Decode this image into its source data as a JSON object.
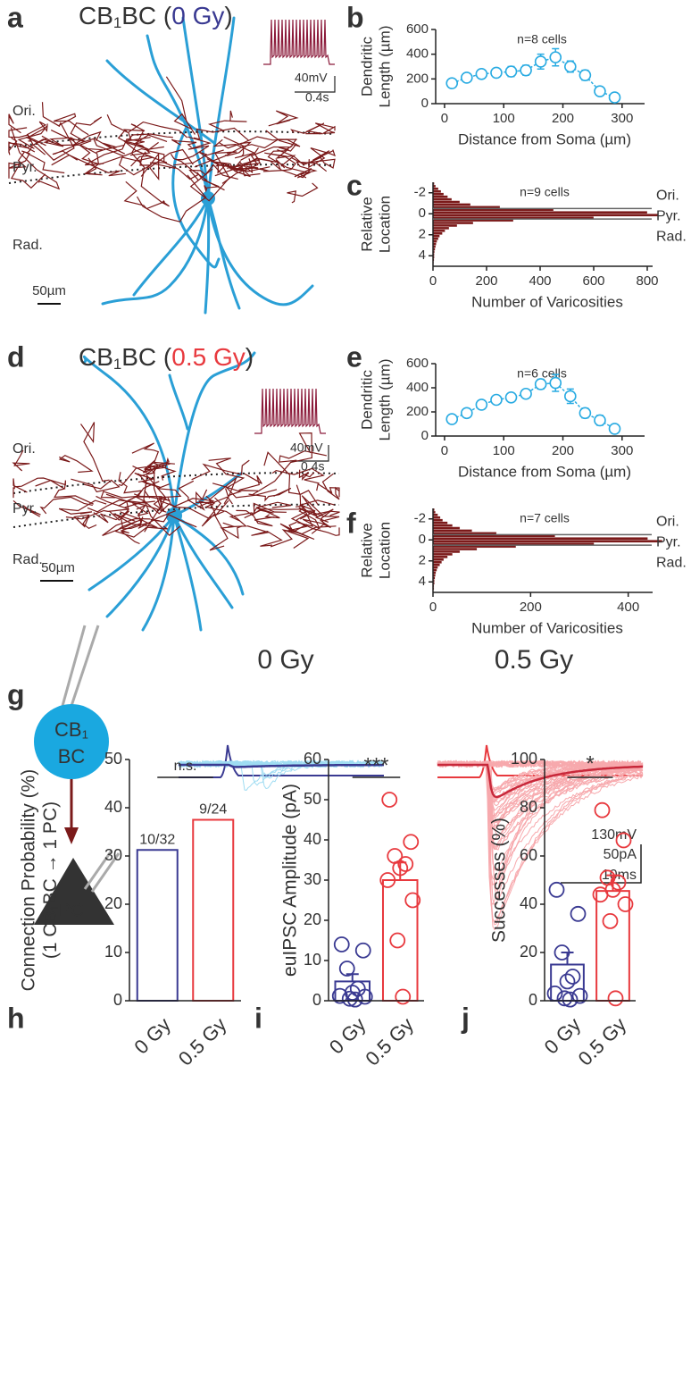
{
  "panel_labels": [
    "a",
    "b",
    "c",
    "d",
    "e",
    "f",
    "g",
    "h",
    "i",
    "j"
  ],
  "morphology": [
    {
      "title_parts": [
        "CB",
        "1",
        "BC (",
        "0 Gy",
        ")"
      ],
      "condition_color": "#3a3a92",
      "layers": [
        "Ori.",
        "Pyr.",
        "Rad."
      ],
      "scale_bar": "50µm",
      "inset_scale": [
        "40mV",
        "0.4s"
      ]
    },
    {
      "title_parts": [
        "CB",
        "1",
        "BC (",
        "0.5 Gy",
        ")"
      ],
      "condition_color": "#e8393e",
      "layers": [
        "Ori.",
        "Pyr.",
        "Rad."
      ],
      "scale_bar": "50µm",
      "inset_scale": [
        "40mV",
        "0.4s"
      ]
    }
  ],
  "connection": {
    "presynaptic": [
      "CB",
      "1",
      "BC"
    ],
    "postsynaptic": "PC",
    "conditions": [
      {
        "name": "0 Gy",
        "color": "#3a3a92"
      },
      {
        "name": "0.5 Gy",
        "color": "#e8393e"
      }
    ],
    "scale": [
      "130mV",
      "50pA",
      "10ms"
    ]
  },
  "chart_data": [
    {
      "type": "line",
      "title": "n=8 cells",
      "x": [
        12.5,
        37.5,
        62.5,
        87.5,
        112.5,
        137.5,
        162.5,
        187.5,
        212.5,
        237.5,
        262.5,
        287.5
      ],
      "series": [
        {
          "color": "#29abe2",
          "values": [
            165,
            210,
            240,
            250,
            260,
            270,
            340,
            375,
            300,
            230,
            100,
            50
          ],
          "errors": [
            25,
            20,
            20,
            25,
            40,
            40,
            60,
            70,
            45,
            40,
            20,
            15
          ]
        }
      ],
      "xlim": [
        -15,
        338
      ],
      "xticks": [
        0,
        100,
        200,
        300
      ],
      "ylim": [
        0,
        600
      ],
      "yticks": [
        0,
        200,
        400,
        600
      ],
      "xlabel": "Distance from Soma (µm)",
      "ylabel": [
        "Dendritic",
        "Length (µm)"
      ]
    },
    {
      "type": "histogram",
      "orientation": "horizontal",
      "title": "n=9 cells",
      "color": "#7b1a1a",
      "bins": [
        -3,
        -2.75,
        -2.5,
        -2.25,
        -2,
        -1.75,
        -1.5,
        -1.25,
        -1,
        -0.75,
        -0.5,
        -0.25,
        0,
        0.25,
        0.5,
        0.75,
        1,
        1.25,
        1.5,
        1.75,
        2,
        2.25,
        2.5,
        2.75,
        3,
        3.25,
        3.5,
        3.75,
        4,
        4.25,
        4.5,
        4.75,
        5
      ],
      "values": [
        5,
        10,
        20,
        30,
        40,
        55,
        70,
        100,
        140,
        250,
        450,
        800,
        840,
        600,
        300,
        150,
        90,
        60,
        45,
        35,
        25,
        20,
        15,
        12,
        10,
        8,
        6,
        5,
        5,
        4,
        3,
        2
      ],
      "xlim": [
        0,
        820
      ],
      "xticks": [
        0,
        200,
        400,
        600,
        800
      ],
      "ylim": [
        -3,
        5
      ],
      "y_inverted": true,
      "yticks": [
        -2,
        0,
        2,
        4
      ],
      "boundaries": [
        -0.5,
        0.5
      ],
      "regions": [
        "Ori.",
        "Pyr.",
        "Rad."
      ],
      "xlabel": "Number of Varicosities",
      "ylabel": [
        "Relative",
        "Location"
      ]
    },
    {
      "type": "line",
      "title": "n=6 cells",
      "x": [
        12.5,
        37.5,
        62.5,
        87.5,
        112.5,
        137.5,
        162.5,
        187.5,
        212.5,
        237.5,
        262.5,
        287.5
      ],
      "series": [
        {
          "color": "#29abe2",
          "values": [
            140,
            190,
            260,
            300,
            320,
            350,
            430,
            440,
            330,
            190,
            130,
            60
          ],
          "errors": [
            20,
            20,
            20,
            20,
            20,
            25,
            40,
            70,
            60,
            40,
            40,
            20
          ]
        }
      ],
      "xlim": [
        -15,
        338
      ],
      "xticks": [
        0,
        100,
        200,
        300
      ],
      "ylim": [
        0,
        600
      ],
      "yticks": [
        0,
        200,
        400,
        600
      ],
      "xlabel": "Distance from Soma (µm)",
      "ylabel": [
        "Dendritic",
        "Length (µm)"
      ]
    },
    {
      "type": "histogram",
      "orientation": "horizontal",
      "title": "n=7 cells",
      "color": "#7b1a1a",
      "bins": [
        -3,
        -2.75,
        -2.5,
        -2.25,
        -2,
        -1.75,
        -1.5,
        -1.25,
        -1,
        -0.75,
        -0.5,
        -0.25,
        0,
        0.25,
        0.5,
        0.75,
        1,
        1.25,
        1.5,
        1.75,
        2,
        2.25,
        2.5,
        2.75,
        3,
        3.25,
        3.5,
        3.75,
        4,
        4.25,
        4.5,
        4.75,
        5
      ],
      "values": [
        3,
        5,
        10,
        15,
        20,
        30,
        40,
        55,
        80,
        130,
        250,
        440,
        470,
        330,
        170,
        90,
        55,
        40,
        30,
        22,
        18,
        14,
        10,
        8,
        6,
        5,
        4,
        3,
        3,
        2,
        2,
        1
      ],
      "xlim": [
        0,
        450
      ],
      "xticks": [
        0,
        200,
        400
      ],
      "ylim": [
        -3,
        5
      ],
      "y_inverted": true,
      "yticks": [
        -2,
        0,
        2,
        4
      ],
      "boundaries": [
        -0.5,
        0.5
      ],
      "regions": [
        "Ori.",
        "Pyr.",
        "Rad."
      ],
      "xlabel": "Number of Varicosities",
      "ylabel": [
        "Relative",
        "Location"
      ]
    },
    {
      "type": "bar",
      "categories": [
        "0 Gy",
        "0.5 Gy"
      ],
      "colors": [
        "#3a3a92",
        "#e8393e"
      ],
      "values": [
        31.25,
        37.5
      ],
      "value_labels": [
        "10/32",
        "9/24"
      ],
      "ylim": [
        0,
        50
      ],
      "yticks": [
        0,
        10,
        20,
        30,
        40,
        50
      ],
      "ylabel": [
        "Connection Probability (%)",
        [
          "(1 CB",
          "1",
          "BC → 1 PC)"
        ]
      ],
      "significance": "n.s."
    },
    {
      "type": "bar",
      "categories": [
        "0 Gy",
        "0.5 Gy"
      ],
      "colors": [
        "#3a3a92",
        "#e8393e"
      ],
      "values": [
        4.8,
        30
      ],
      "errors": [
        1.8,
        4.4
      ],
      "points": [
        [
          14,
          12.5,
          8,
          3,
          2,
          1.2,
          1,
          0.5,
          0.3
        ],
        [
          50,
          39.5,
          36,
          34,
          33,
          30,
          25,
          15,
          1
        ]
      ],
      "ylim": [
        0,
        60
      ],
      "yticks": [
        0,
        10,
        20,
        30,
        40,
        50,
        60
      ],
      "ylabel": [
        "euIPSC Amplitude (pA)"
      ],
      "significance": "***"
    },
    {
      "type": "bar",
      "categories": [
        "0 Gy",
        "0.5 Gy"
      ],
      "colors": [
        "#3a3a92",
        "#e8393e"
      ],
      "values": [
        15,
        45.5
      ],
      "errors": [
        5,
        6.5
      ],
      "points": [
        [
          46,
          36,
          20,
          10,
          8,
          3,
          2,
          1,
          0.5
        ],
        [
          79,
          66.5,
          51,
          49,
          46,
          44,
          40,
          33,
          1
        ]
      ],
      "ylim": [
        0,
        100
      ],
      "yticks": [
        0,
        20,
        40,
        60,
        80,
        100
      ],
      "ylabel": [
        "Successes (%)"
      ],
      "significance": "*"
    }
  ]
}
